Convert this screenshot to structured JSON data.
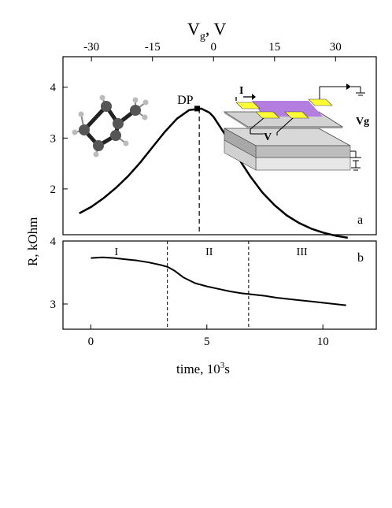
{
  "figure": {
    "top_axis_label_main": "V",
    "top_axis_label_sub": "g",
    "top_axis_label_tail": ", V",
    "y_axis_label": "R, kOhm",
    "x_axis_label_main": "time, 10",
    "x_axis_label_sup": "3",
    "x_axis_label_tail": "s"
  },
  "chart_data": [
    {
      "panel": "a",
      "type": "line",
      "x_axis": "top",
      "xlim": [
        -37,
        40
      ],
      "xticks": [
        -30,
        -15,
        0,
        15,
        30
      ],
      "ylim": [
        1.1,
        4.6
      ],
      "yticks": [
        2,
        3,
        4
      ],
      "series": [
        {
          "x": [
            -33,
            -30,
            -27,
            -24,
            -21,
            -18,
            -15,
            -12,
            -9,
            -6,
            -3,
            -1,
            0,
            3,
            6,
            9,
            12,
            15,
            18,
            21,
            24,
            27,
            30,
            33
          ],
          "y": [
            1.52,
            1.65,
            1.82,
            2.02,
            2.25,
            2.52,
            2.82,
            3.12,
            3.38,
            3.55,
            3.58,
            3.5,
            3.42,
            3.05,
            2.62,
            2.25,
            1.93,
            1.68,
            1.48,
            1.33,
            1.22,
            1.14,
            1.08,
            1.04
          ]
        }
      ],
      "annotations": {
        "dirac_point_label": "DP",
        "dirac_point_x": -4,
        "dirac_point_y": 3.58,
        "dashed_vline_x": -3.5,
        "panel_label": "a"
      },
      "inset_device": {
        "current_label": "I",
        "voltage_label": "V",
        "gate_label": "Vg",
        "electrode_color": "#ffff33",
        "graphene_color": "#b37ee0"
      }
    },
    {
      "panel": "b",
      "type": "line",
      "xlim": [
        -1.2,
        12.3
      ],
      "xticks": [
        0,
        5,
        10
      ],
      "ylim": [
        2.6,
        4.0
      ],
      "yticks": [
        3,
        4
      ],
      "series": [
        {
          "x": [
            0,
            0.5,
            1,
            1.5,
            2,
            2.5,
            3,
            3.3,
            3.6,
            4,
            4.5,
            5,
            5.5,
            6,
            6.5,
            7,
            7.5,
            8,
            8.5,
            9,
            9.5,
            10,
            10.5,
            11
          ],
          "y": [
            3.73,
            3.74,
            3.73,
            3.71,
            3.69,
            3.66,
            3.62,
            3.59,
            3.53,
            3.42,
            3.33,
            3.28,
            3.24,
            3.2,
            3.17,
            3.15,
            3.13,
            3.1,
            3.08,
            3.06,
            3.04,
            3.02,
            3.0,
            2.98
          ]
        }
      ],
      "annotations": {
        "dashed_vlines_x": [
          3.3,
          6.8
        ],
        "region_labels": [
          "I",
          "II",
          "III"
        ],
        "region_label_x": [
          1.1,
          5.1,
          9.1
        ],
        "panel_label": "b"
      }
    }
  ]
}
